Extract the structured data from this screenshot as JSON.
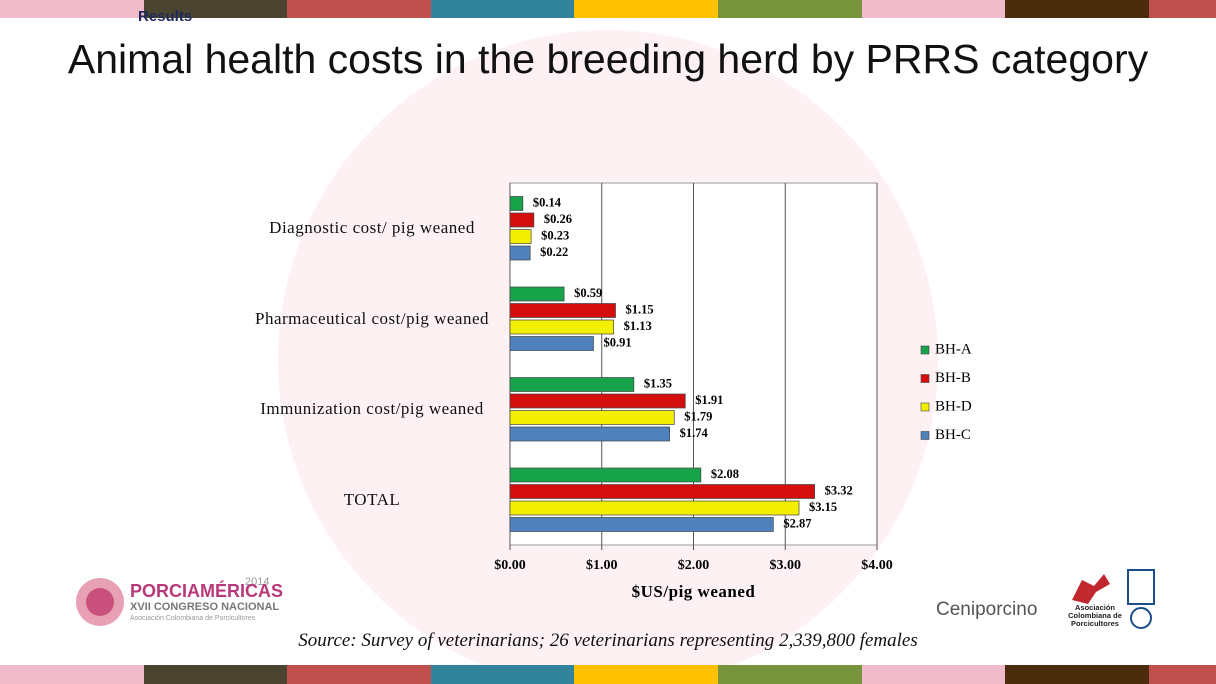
{
  "slide": {
    "header": "Results",
    "source": "Source: Survey of veterinarians; 26 veterinarians representing 2,339,800 females",
    "logos": [
      "2014",
      "PORCIAMÉRICAS",
      "XVII CONGRESO NACIONAL",
      "Asociación Colombiana de Porcicultores",
      "Ceniporcino",
      "Asociación Colombiana de Porcicultores"
    ]
  },
  "chart_data": {
    "type": "hbar",
    "title": "Animal health costs in the breeding herd by PRRS category",
    "xlabel": "$US/pig weaned",
    "categories": [
      "Diagnostic cost/ pig weaned",
      "Pharmaceutical cost/pig weaned",
      "Immunization cost/pig weaned",
      "TOTAL"
    ],
    "series": [
      {
        "name": "BH-A",
        "color": "#16a34a",
        "values": [
          0.14,
          0.59,
          1.35,
          2.08
        ],
        "value_labels": [
          "$0.14",
          "$0.59",
          "$1.35",
          "$2.08"
        ]
      },
      {
        "name": "BH-B",
        "color": "#d40d0d",
        "values": [
          0.26,
          1.15,
          1.91,
          3.32
        ],
        "value_labels": [
          "$0.26",
          "$1.15",
          "$1.91",
          "$3.32"
        ]
      },
      {
        "name": "BH-D",
        "color": "#f2ef00",
        "values": [
          0.23,
          1.13,
          1.79,
          3.15
        ],
        "value_labels": [
          "$0.23",
          "$1.13",
          "$1.79",
          "$3.15"
        ]
      },
      {
        "name": "BH-C",
        "color": "#4f81bd",
        "values": [
          0.22,
          0.91,
          1.74,
          2.87
        ],
        "value_labels": [
          "$0.22",
          "$0.91",
          "$1.74",
          "$2.87"
        ]
      }
    ],
    "xlim": [
      0,
      4
    ],
    "xticks": [
      {
        "value": 0,
        "label": "$0.00"
      },
      {
        "value": 1,
        "label": "$1.00"
      },
      {
        "value": 2,
        "label": "$2.00"
      },
      {
        "value": 3,
        "label": "$3.00"
      },
      {
        "value": 4,
        "label": "$4.00"
      }
    ],
    "grid": true,
    "legend": "right"
  }
}
